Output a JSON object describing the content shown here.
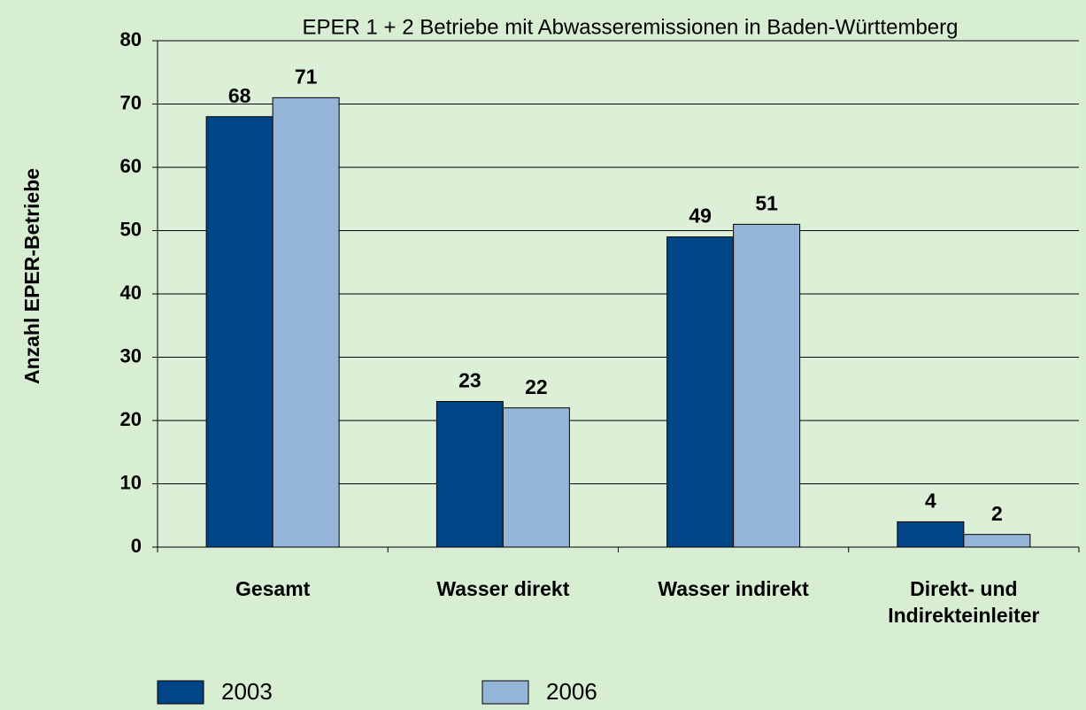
{
  "chart_data": {
    "type": "bar",
    "title": "EPER 1 + 2 Betriebe mit Abwasseremissionen in Baden-Württemberg",
    "y_label": "Anzahl EPER-Betriebe",
    "categories": [
      "Gesamt",
      "Wasser direkt",
      "Wasser indirekt",
      "Direkt- und Indirekteinleiter"
    ],
    "series": [
      {
        "name": "2003",
        "color": "#004586",
        "values": [
          68,
          23,
          49,
          4
        ]
      },
      {
        "name": "2006",
        "color": "#94b4d8",
        "values": [
          71,
          22,
          51,
          2
        ]
      }
    ],
    "ylim": [
      0,
      80
    ],
    "yticks": [
      0,
      10,
      20,
      30,
      40,
      50,
      60,
      70,
      80
    ],
    "grid": true
  }
}
